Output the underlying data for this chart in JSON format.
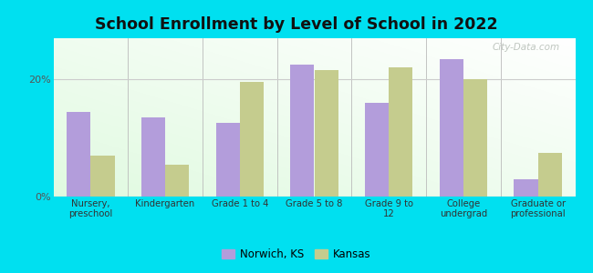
{
  "title": "School Enrollment by Level of School in 2022",
  "categories": [
    "Nursery,\npreschool",
    "Kindergarten",
    "Grade 1 to 4",
    "Grade 5 to 8",
    "Grade 9 to\n12",
    "College\nundergrad",
    "Graduate or\nprofessional"
  ],
  "norwich_values": [
    14.5,
    13.5,
    12.5,
    22.5,
    16.0,
    23.5,
    3.0
  ],
  "kansas_values": [
    7.0,
    5.5,
    19.5,
    21.5,
    22.0,
    20.0,
    7.5
  ],
  "norwich_color": "#b39ddb",
  "kansas_color": "#c5cc8e",
  "background_color": "#00e0f0",
  "ylabel_ticks": [
    "0%",
    "20%"
  ],
  "yticks": [
    0,
    20
  ],
  "ylim": [
    0,
    27
  ],
  "legend_labels": [
    "Norwich, KS",
    "Kansas"
  ],
  "watermark": "City-Data.com",
  "bar_width": 0.32
}
